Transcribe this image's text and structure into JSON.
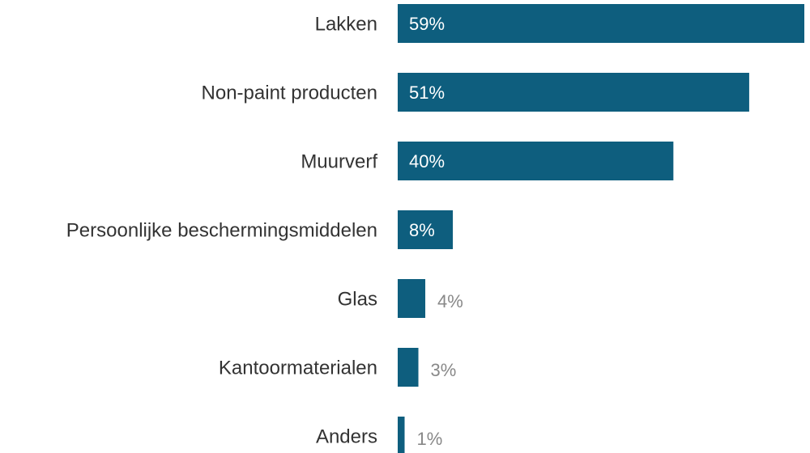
{
  "chart_data": {
    "type": "bar",
    "orientation": "horizontal",
    "categories": [
      "Lakken",
      "Non-paint producten",
      "Muurverf",
      "Persoonlijke beschermingsmiddelen",
      "Glas",
      "Kantoormaterialen",
      "Anders"
    ],
    "values": [
      59,
      51,
      40,
      8,
      4,
      3,
      1
    ],
    "value_labels": [
      "59%",
      "51%",
      "40%",
      "8%",
      "4%",
      "3%",
      "1%"
    ],
    "color": "#0e5e7e"
  }
}
